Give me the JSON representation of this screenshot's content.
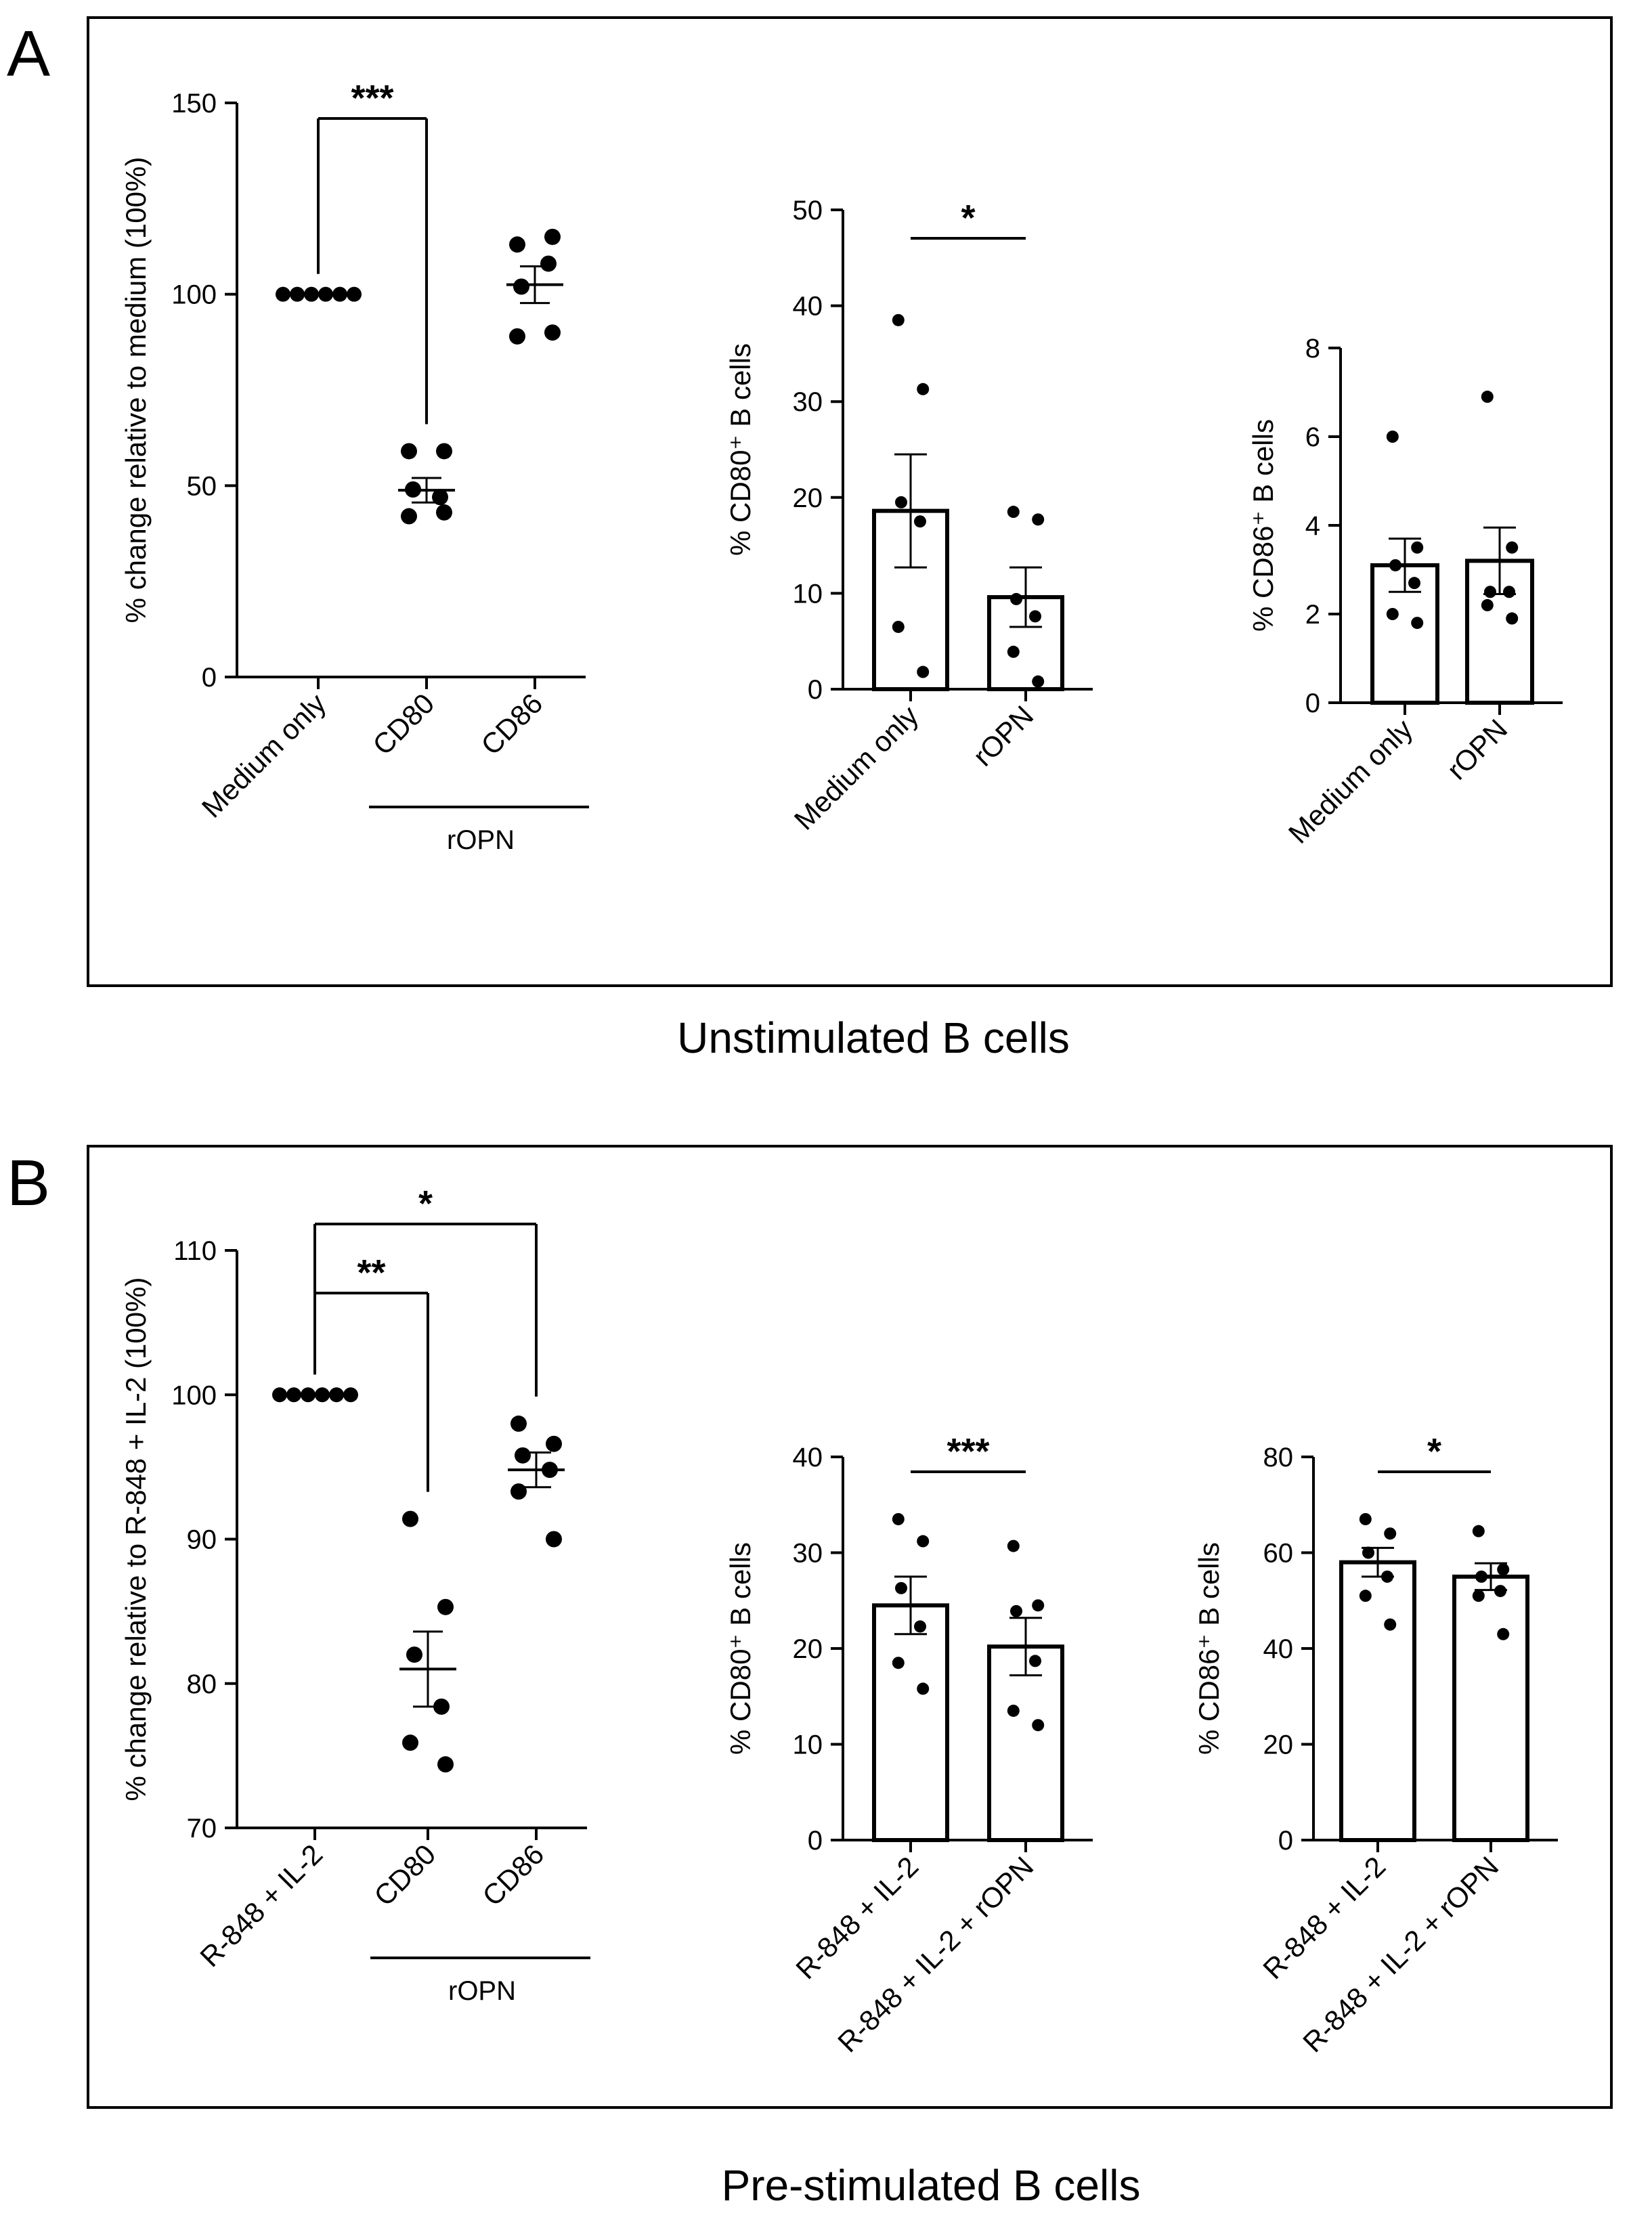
{
  "panels": [
    {
      "letter": "A",
      "caption": "Unstimulated B cells"
    },
    {
      "letter": "B",
      "caption": "Pre-stimulated B cells"
    }
  ],
  "chart_data": [
    {
      "id": "A1",
      "type": "scatter",
      "panel": "A",
      "ylabel": "% change relative to medium (100%)",
      "ylim": [
        0,
        150
      ],
      "yticks": [
        0,
        50,
        100,
        150
      ],
      "categories": [
        "Medium only",
        "CD80",
        "CD86"
      ],
      "group_label": "rOPN",
      "group_members": [
        "CD80",
        "CD86"
      ],
      "series": [
        {
          "name": "Medium only",
          "points": [
            100,
            100,
            100,
            100,
            100,
            100
          ]
        },
        {
          "name": "CD80",
          "points": [
            59,
            59,
            49,
            47,
            42,
            43
          ],
          "mean": 48.8,
          "sem": 3.2
        },
        {
          "name": "CD86",
          "points": [
            113,
            115,
            102,
            108,
            89,
            90
          ],
          "mean": 102.5,
          "sem": 4.8
        }
      ],
      "significance": [
        {
          "from": "Medium only",
          "to": "CD80",
          "label": "***"
        }
      ]
    },
    {
      "id": "A2",
      "type": "bar",
      "panel": "A",
      "ylabel": "% CD80⁺ B cells",
      "ylim": [
        0,
        50
      ],
      "yticks": [
        0,
        10,
        20,
        30,
        40,
        50
      ],
      "categories": [
        "Medium only",
        "rOPN"
      ],
      "values": [
        18.6,
        9.6
      ],
      "sem": [
        5.9,
        3.1
      ],
      "points": [
        [
          38.5,
          31.3,
          19.5,
          17.5,
          6.5,
          1.8
        ],
        [
          18.5,
          17.7,
          9.4,
          7.6,
          3.9,
          0.8
        ]
      ],
      "significance": [
        {
          "from": "Medium only",
          "to": "rOPN",
          "label": "*"
        }
      ]
    },
    {
      "id": "A3",
      "type": "bar",
      "panel": "A",
      "ylabel": "% CD86⁺ B cells",
      "ylim": [
        0,
        8
      ],
      "yticks": [
        0,
        2,
        4,
        6,
        8
      ],
      "categories": [
        "Medium only",
        "rOPN"
      ],
      "values": [
        3.1,
        3.2
      ],
      "sem": [
        0.6,
        0.75
      ],
      "points": [
        [
          6.0,
          3.5,
          3.1,
          2.7,
          2.0,
          1.8
        ],
        [
          6.9,
          3.5,
          2.5,
          2.5,
          2.2,
          1.9
        ]
      ],
      "significance": []
    },
    {
      "id": "B1",
      "type": "scatter",
      "panel": "B",
      "ylabel": "% change relative to R-848 + IL-2 (100%)",
      "ylim": [
        70,
        110
      ],
      "yticks": [
        70,
        80,
        90,
        100,
        110
      ],
      "categories": [
        "R-848 + IL-2",
        "CD80",
        "CD86"
      ],
      "group_label": "rOPN",
      "group_members": [
        "CD80",
        "CD86"
      ],
      "series": [
        {
          "name": "R-848 + IL-2",
          "points": [
            100,
            100,
            100,
            100,
            100,
            100
          ]
        },
        {
          "name": "CD80",
          "points": [
            91.4,
            85.3,
            82.0,
            78.4,
            75.9,
            74.4
          ],
          "mean": 81.0,
          "sem": 2.6
        },
        {
          "name": "CD86",
          "points": [
            98.0,
            96.6,
            95.8,
            94.8,
            93.3,
            90.0
          ],
          "mean": 94.8,
          "sem": 1.2
        }
      ],
      "significance": [
        {
          "from": "R-848 + IL-2",
          "to": "CD80",
          "label": "**"
        },
        {
          "from": "R-848 + IL-2",
          "to": "CD86",
          "label": "*"
        }
      ]
    },
    {
      "id": "B2",
      "type": "bar",
      "panel": "B",
      "ylabel": "% CD80⁺ B cells",
      "ylim": [
        0,
        40
      ],
      "yticks": [
        0,
        10,
        20,
        30,
        40
      ],
      "categories": [
        "R-848 + IL-2",
        "R-848 + IL-2 + rOPN"
      ],
      "values": [
        24.5,
        20.2
      ],
      "sem": [
        3.0,
        3.0
      ],
      "points": [
        [
          33.5,
          31.2,
          26.3,
          22.3,
          18.5,
          15.8
        ],
        [
          30.7,
          24.5,
          23.9,
          18.7,
          13.5,
          12.0
        ]
      ],
      "significance": [
        {
          "from": "R-848 + IL-2",
          "to": "R-848 + IL-2 + rOPN",
          "label": "***"
        }
      ]
    },
    {
      "id": "B3",
      "type": "bar",
      "panel": "B",
      "ylabel": "% CD86⁺ B cells",
      "ylim": [
        0,
        80
      ],
      "yticks": [
        0,
        20,
        40,
        60,
        80
      ],
      "categories": [
        "R-848 + IL-2",
        "R-848 + IL-2 + rOPN"
      ],
      "values": [
        58,
        55
      ],
      "sem": [
        3.0,
        2.8
      ],
      "points": [
        [
          67,
          64,
          60,
          55,
          51,
          45
        ],
        [
          64.5,
          56.5,
          55,
          52,
          51,
          43
        ]
      ],
      "significance": [
        {
          "from": "R-848 + IL-2",
          "to": "R-848 + IL-2 + rOPN",
          "label": "*"
        }
      ]
    }
  ]
}
